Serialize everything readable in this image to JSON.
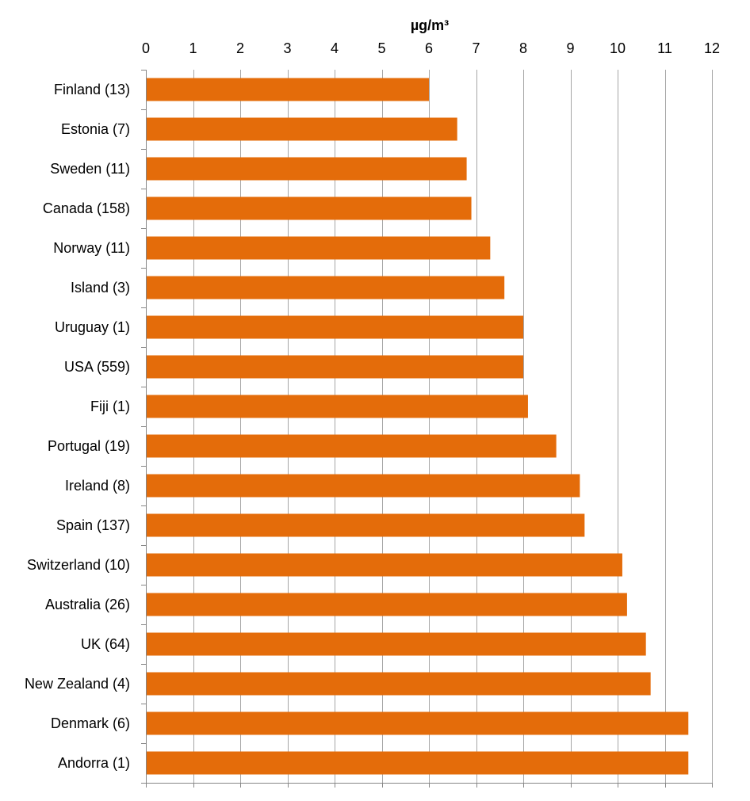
{
  "chart_data": {
    "type": "bar",
    "orientation": "horizontal",
    "xlabel": "µg/m³",
    "ylabel": "",
    "title": "",
    "xlim": [
      0,
      12
    ],
    "xticks": [
      0,
      1,
      2,
      3,
      4,
      5,
      6,
      7,
      8,
      9,
      10,
      11,
      12
    ],
    "grid": true,
    "legend": "none",
    "bar_color": "#E46C0A",
    "categories": [
      "Finland (13)",
      "Estonia (7)",
      "Sweden (11)",
      "Canada (158)",
      "Norway (11)",
      "Island (3)",
      "Uruguay (1)",
      "USA (559)",
      "Fiji (1)",
      "Portugal (19)",
      "Ireland (8)",
      "Spain (137)",
      "Switzerland (10)",
      "Australia (26)",
      "UK (64)",
      "New Zealand (4)",
      "Denmark (6)",
      "Andorra (1)"
    ],
    "values": [
      6.0,
      6.6,
      6.8,
      6.9,
      7.3,
      7.6,
      8.0,
      8.0,
      8.1,
      8.7,
      9.2,
      9.3,
      10.1,
      10.2,
      10.6,
      10.7,
      11.5,
      11.5
    ]
  }
}
